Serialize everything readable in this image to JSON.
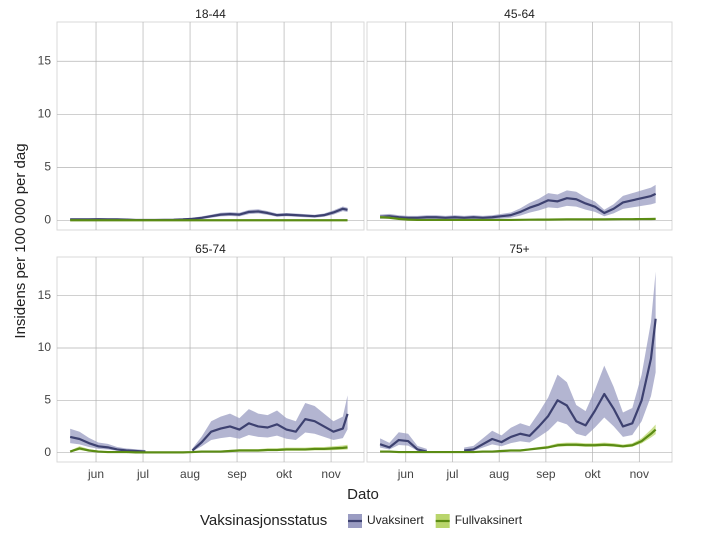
{
  "xlabel": "Dato",
  "ylabel": "Insidens per 100 000 per dag",
  "legend": {
    "title": "Vaksinasjonsstatus"
  },
  "chart_data": [
    {
      "type": "line",
      "title": "18-44",
      "x": [
        5.45,
        5.65,
        5.85,
        6.05,
        6.25,
        6.45,
        6.65,
        6.85,
        7.05,
        7.25,
        7.45,
        7.65,
        7.85,
        8.05,
        8.25,
        8.45,
        8.65,
        8.85,
        9.05,
        9.25,
        9.45,
        9.65,
        9.85,
        10.05,
        10.25,
        10.45,
        10.65,
        10.85,
        11.05,
        11.25,
        11.35
      ],
      "xlim": [
        5.17,
        11.7
      ],
      "xticks": [
        {
          "value": 6,
          "label": "jun"
        },
        {
          "value": 7,
          "label": "jul"
        },
        {
          "value": 8,
          "label": "aug"
        },
        {
          "value": 9,
          "label": "sep"
        },
        {
          "value": 10,
          "label": "okt"
        },
        {
          "value": 11,
          "label": "nov"
        }
      ],
      "ylim": [
        -0.9,
        18.7
      ],
      "yticks": [
        0,
        5,
        10,
        15
      ],
      "grid": true,
      "series": [
        {
          "name": "Uvaksinert",
          "color": "#3d4170",
          "band_color": "#9a9cc2",
          "values": [
            0.1,
            0.1,
            0.1,
            0.12,
            0.1,
            0.1,
            0.08,
            0.05,
            0.05,
            0.05,
            0.06,
            0.07,
            0.1,
            0.15,
            0.25,
            0.4,
            0.55,
            0.6,
            0.55,
            0.8,
            0.85,
            0.7,
            0.5,
            0.55,
            0.5,
            0.45,
            0.4,
            0.5,
            0.75,
            1.1,
            1.0
          ],
          "lower": [
            0,
            0,
            0,
            0.02,
            0,
            0,
            0,
            0,
            0,
            0,
            0,
            0,
            0,
            0.05,
            0.12,
            0.25,
            0.38,
            0.42,
            0.38,
            0.6,
            0.65,
            0.52,
            0.35,
            0.4,
            0.35,
            0.3,
            0.26,
            0.35,
            0.55,
            0.88,
            0.8
          ],
          "upper": [
            0.2,
            0.2,
            0.2,
            0.22,
            0.2,
            0.2,
            0.16,
            0.12,
            0.12,
            0.12,
            0.13,
            0.14,
            0.2,
            0.26,
            0.38,
            0.55,
            0.72,
            0.78,
            0.72,
            1.0,
            1.05,
            0.88,
            0.65,
            0.7,
            0.65,
            0.6,
            0.54,
            0.65,
            0.95,
            1.32,
            1.2
          ]
        },
        {
          "name": "Fullvaksinert",
          "color": "#5b8c14",
          "band_color": "#b9d56c",
          "values": [
            0.02,
            0.02,
            0.02,
            0.02,
            0.02,
            0.02,
            0.02,
            0.02,
            0.02,
            0.02,
            0.02,
            0.02,
            0.02,
            0.02,
            0.02,
            0.02,
            0.02,
            0.02,
            0.02,
            0.02,
            0.02,
            0.02,
            0.02,
            0.02,
            0.02,
            0.02,
            0.02,
            0.02,
            0.02,
            0.02,
            0.02
          ],
          "lower": [
            0,
            0,
            0,
            0,
            0,
            0,
            0,
            0,
            0,
            0,
            0,
            0,
            0,
            0,
            0,
            0,
            0,
            0,
            0,
            0,
            0,
            0,
            0,
            0,
            0,
            0,
            0,
            0,
            0,
            0,
            0
          ],
          "upper": [
            0.05,
            0.05,
            0.05,
            0.05,
            0.05,
            0.05,
            0.05,
            0.05,
            0.05,
            0.05,
            0.05,
            0.05,
            0.05,
            0.05,
            0.05,
            0.05,
            0.05,
            0.05,
            0.05,
            0.05,
            0.05,
            0.05,
            0.05,
            0.05,
            0.05,
            0.05,
            0.05,
            0.05,
            0.05,
            0.05,
            0.05
          ]
        }
      ]
    },
    {
      "type": "line",
      "title": "45-64",
      "x": [
        5.45,
        5.65,
        5.85,
        6.05,
        6.25,
        6.45,
        6.65,
        6.85,
        7.05,
        7.25,
        7.45,
        7.65,
        7.85,
        8.05,
        8.25,
        8.45,
        8.65,
        8.85,
        9.05,
        9.25,
        9.45,
        9.65,
        9.85,
        10.05,
        10.25,
        10.45,
        10.65,
        10.85,
        11.05,
        11.25,
        11.35
      ],
      "xlim": [
        5.17,
        11.7
      ],
      "xticks": [
        {
          "value": 6,
          "label": "jun"
        },
        {
          "value": 7,
          "label": "jul"
        },
        {
          "value": 8,
          "label": "aug"
        },
        {
          "value": 9,
          "label": "sep"
        },
        {
          "value": 10,
          "label": "okt"
        },
        {
          "value": 11,
          "label": "nov"
        }
      ],
      "ylim": [
        -0.9,
        18.7
      ],
      "yticks": [
        0,
        5,
        10,
        15
      ],
      "grid": true,
      "series": [
        {
          "name": "Uvaksinert",
          "color": "#3d4170",
          "band_color": "#9a9cc2",
          "values": [
            0.35,
            0.4,
            0.3,
            0.25,
            0.25,
            0.3,
            0.3,
            0.25,
            0.3,
            0.25,
            0.3,
            0.25,
            0.3,
            0.4,
            0.5,
            0.8,
            1.2,
            1.5,
            1.9,
            1.8,
            2.1,
            2.0,
            1.6,
            1.3,
            0.7,
            1.1,
            1.7,
            1.9,
            2.1,
            2.3,
            2.5
          ],
          "lower": [
            0.15,
            0.18,
            0.11,
            0.08,
            0.08,
            0.11,
            0.11,
            0.08,
            0.11,
            0.08,
            0.11,
            0.08,
            0.11,
            0.18,
            0.25,
            0.46,
            0.74,
            0.95,
            1.23,
            1.16,
            1.37,
            1.3,
            1.02,
            0.81,
            0.39,
            0.67,
            1.09,
            1.23,
            1.37,
            1.51,
            1.65
          ],
          "upper": [
            0.56,
            0.62,
            0.49,
            0.43,
            0.43,
            0.49,
            0.49,
            0.43,
            0.49,
            0.43,
            0.49,
            0.43,
            0.49,
            0.62,
            0.75,
            1.14,
            1.66,
            2.05,
            2.57,
            2.44,
            2.83,
            2.7,
            2.18,
            1.79,
            1.01,
            1.53,
            2.31,
            2.57,
            2.83,
            3.09,
            3.35
          ]
        },
        {
          "name": "Fullvaksinert",
          "color": "#5b8c14",
          "band_color": "#b9d56c",
          "values": [
            0.3,
            0.25,
            0.15,
            0.08,
            0.05,
            0.05,
            0.05,
            0.05,
            0.05,
            0.05,
            0.05,
            0.05,
            0.05,
            0.05,
            0.05,
            0.06,
            0.07,
            0.08,
            0.08,
            0.09,
            0.1,
            0.1,
            0.1,
            0.1,
            0.1,
            0.11,
            0.12,
            0.12,
            0.13,
            0.14,
            0.15
          ],
          "lower": [
            0.21,
            0.18,
            0.1,
            0.06,
            0.04,
            0.04,
            0.04,
            0.04,
            0.04,
            0.04,
            0.04,
            0.04,
            0.04,
            0.04,
            0.04,
            0.04,
            0.05,
            0.06,
            0.06,
            0.06,
            0.07,
            0.07,
            0.07,
            0.07,
            0.07,
            0.08,
            0.08,
            0.08,
            0.09,
            0.1,
            0.1
          ],
          "upper": [
            0.42,
            0.36,
            0.22,
            0.13,
            0.09,
            0.09,
            0.09,
            0.09,
            0.09,
            0.09,
            0.09,
            0.09,
            0.09,
            0.09,
            0.09,
            0.1,
            0.12,
            0.13,
            0.13,
            0.14,
            0.16,
            0.16,
            0.16,
            0.16,
            0.16,
            0.17,
            0.19,
            0.19,
            0.2,
            0.21,
            0.23
          ]
        }
      ]
    },
    {
      "type": "line",
      "title": "65-74",
      "x": [
        5.45,
        5.65,
        5.85,
        6.05,
        6.25,
        6.45,
        6.65,
        6.85,
        7.05,
        7.25,
        7.45,
        7.65,
        7.85,
        8.05,
        8.25,
        8.45,
        8.65,
        8.85,
        9.05,
        9.25,
        9.45,
        9.65,
        9.85,
        10.05,
        10.25,
        10.45,
        10.65,
        10.85,
        11.05,
        11.25,
        11.35
      ],
      "xlim": [
        5.17,
        11.7
      ],
      "xticks": [
        {
          "value": 6,
          "label": "jun"
        },
        {
          "value": 7,
          "label": "jul"
        },
        {
          "value": 8,
          "label": "aug"
        },
        {
          "value": 9,
          "label": "sep"
        },
        {
          "value": 10,
          "label": "okt"
        },
        {
          "value": 11,
          "label": "nov"
        }
      ],
      "ylim": [
        -0.9,
        18.7
      ],
      "yticks": [
        0,
        5,
        10,
        15
      ],
      "grid": true,
      "series": [
        {
          "name": "Uvaksinert",
          "color": "#3d4170",
          "band_color": "#9a9cc2",
          "values": [
            1.5,
            1.3,
            0.9,
            0.6,
            0.5,
            0.3,
            0.2,
            0.15,
            0.1,
            null,
            null,
            null,
            null,
            0.2,
            1.0,
            2.0,
            2.3,
            2.5,
            2.2,
            2.8,
            2.5,
            2.4,
            2.7,
            2.2,
            2.0,
            3.2,
            3.0,
            2.5,
            2.0,
            2.3,
            3.7
          ],
          "lower": [
            0.9,
            0.78,
            0.54,
            0.36,
            0.3,
            0.18,
            0.12,
            0.09,
            0.06,
            null,
            null,
            null,
            null,
            0.12,
            0.6,
            1.2,
            1.38,
            1.5,
            1.32,
            1.68,
            1.5,
            1.44,
            1.62,
            1.32,
            1.2,
            1.92,
            1.8,
            1.5,
            1.2,
            1.38,
            2.22
          ],
          "upper": [
            2.28,
            1.99,
            1.41,
            0.97,
            0.83,
            0.54,
            0.39,
            0.32,
            0.25,
            null,
            null,
            null,
            null,
            0.39,
            1.55,
            3.0,
            3.44,
            3.73,
            3.29,
            4.16,
            3.73,
            3.58,
            4.02,
            3.29,
            3.0,
            4.74,
            4.45,
            3.73,
            3.0,
            3.44,
            5.47
          ]
        },
        {
          "name": "Fullvaksinert",
          "color": "#5b8c14",
          "band_color": "#b9d56c",
          "values": [
            0.1,
            0.4,
            0.2,
            0.1,
            0.05,
            0.05,
            0.05,
            0.02,
            0.02,
            0.02,
            0.02,
            0.02,
            0.02,
            0.05,
            0.1,
            0.1,
            0.1,
            0.15,
            0.2,
            0.2,
            0.2,
            0.25,
            0.25,
            0.3,
            0.3,
            0.3,
            0.35,
            0.35,
            0.4,
            0.45,
            0.5
          ],
          "lower": [
            0.06,
            0.24,
            0.12,
            0.06,
            0.03,
            0.03,
            0.03,
            0.01,
            0.01,
            0.01,
            0.01,
            0.01,
            0.01,
            0.03,
            0.06,
            0.06,
            0.06,
            0.09,
            0.12,
            0.12,
            0.12,
            0.15,
            0.15,
            0.18,
            0.18,
            0.18,
            0.21,
            0.21,
            0.24,
            0.27,
            0.3
          ],
          "upper": [
            0.19,
            0.61,
            0.33,
            0.19,
            0.12,
            0.12,
            0.12,
            0.08,
            0.08,
            0.08,
            0.08,
            0.08,
            0.08,
            0.12,
            0.19,
            0.19,
            0.19,
            0.26,
            0.33,
            0.33,
            0.33,
            0.4,
            0.4,
            0.47,
            0.47,
            0.47,
            0.54,
            0.54,
            0.61,
            0.68,
            0.75
          ]
        }
      ]
    },
    {
      "type": "line",
      "title": "75+",
      "x": [
        5.45,
        5.65,
        5.85,
        6.05,
        6.25,
        6.45,
        6.65,
        6.85,
        7.05,
        7.25,
        7.45,
        7.65,
        7.85,
        8.05,
        8.25,
        8.45,
        8.65,
        8.85,
        9.05,
        9.25,
        9.45,
        9.65,
        9.85,
        10.05,
        10.25,
        10.45,
        10.65,
        10.85,
        11.05,
        11.25,
        11.35
      ],
      "xlim": [
        5.17,
        11.7
      ],
      "xticks": [
        {
          "value": 6,
          "label": "jun"
        },
        {
          "value": 7,
          "label": "jul"
        },
        {
          "value": 8,
          "label": "aug"
        },
        {
          "value": 9,
          "label": "sep"
        },
        {
          "value": 10,
          "label": "okt"
        },
        {
          "value": 11,
          "label": "nov"
        }
      ],
      "ylim": [
        -0.9,
        18.7
      ],
      "yticks": [
        0,
        5,
        10,
        15
      ],
      "grid": true,
      "series": [
        {
          "name": "Uvaksinert",
          "color": "#3d4170",
          "band_color": "#9a9cc2",
          "values": [
            0.8,
            0.5,
            1.2,
            1.1,
            0.3,
            0.1,
            null,
            null,
            null,
            0.2,
            0.3,
            0.8,
            1.3,
            1.0,
            1.5,
            1.8,
            1.6,
            2.5,
            3.5,
            5.0,
            4.5,
            3.0,
            2.6,
            4.0,
            5.6,
            4.2,
            2.5,
            2.8,
            5.0,
            9.0,
            12.8
          ],
          "lower": [
            0.48,
            0.3,
            0.72,
            0.66,
            0.18,
            0.06,
            null,
            null,
            null,
            0.12,
            0.18,
            0.48,
            0.78,
            0.6,
            0.9,
            1.08,
            0.96,
            1.5,
            2.1,
            3.0,
            2.7,
            1.8,
            1.56,
            2.4,
            3.36,
            2.52,
            1.5,
            1.68,
            3.0,
            5.4,
            7.68
          ],
          "upper": [
            1.36,
            0.93,
            1.94,
            1.8,
            0.64,
            0.35,
            null,
            null,
            null,
            0.49,
            0.64,
            1.36,
            2.09,
            1.65,
            2.38,
            2.81,
            2.52,
            3.83,
            5.28,
            7.45,
            6.73,
            4.55,
            3.97,
            6.0,
            8.32,
            6.29,
            3.83,
            4.26,
            7.45,
            12.5,
            17.3
          ]
        },
        {
          "name": "Fullvaksinert",
          "color": "#5b8c14",
          "band_color": "#b9d56c",
          "values": [
            0.1,
            0.1,
            0.05,
            0.05,
            0.05,
            0.05,
            0.05,
            0.05,
            0.05,
            0.05,
            0.05,
            0.1,
            0.1,
            0.15,
            0.2,
            0.2,
            0.3,
            0.4,
            0.5,
            0.7,
            0.75,
            0.75,
            0.7,
            0.7,
            0.75,
            0.7,
            0.6,
            0.7,
            1.1,
            1.8,
            2.2
          ],
          "lower": [
            0.08,
            0.08,
            0.04,
            0.04,
            0.04,
            0.04,
            0.04,
            0.04,
            0.04,
            0.04,
            0.04,
            0.08,
            0.08,
            0.12,
            0.16,
            0.16,
            0.24,
            0.32,
            0.4,
            0.56,
            0.6,
            0.6,
            0.56,
            0.56,
            0.6,
            0.56,
            0.48,
            0.56,
            0.88,
            1.44,
            1.76
          ],
          "upper": [
            0.17,
            0.17,
            0.11,
            0.11,
            0.11,
            0.11,
            0.11,
            0.11,
            0.11,
            0.11,
            0.11,
            0.17,
            0.17,
            0.23,
            0.29,
            0.29,
            0.41,
            0.53,
            0.65,
            0.89,
            0.95,
            0.95,
            0.89,
            0.89,
            0.95,
            0.89,
            0.77,
            0.89,
            1.37,
            2.21,
            2.69
          ]
        }
      ]
    }
  ]
}
